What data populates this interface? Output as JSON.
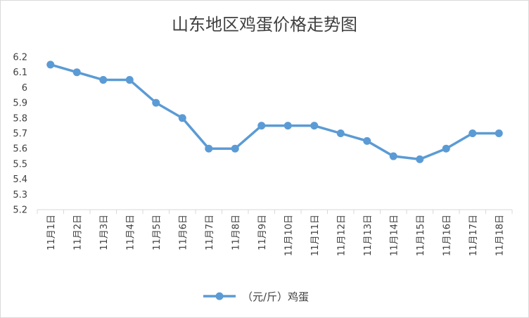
{
  "chart_data": {
    "type": "line",
    "title": "山东地区鸡蛋价格走势图",
    "xlabel": "",
    "ylabel": "",
    "categories": [
      "11月1日",
      "11月2日",
      "11月3日",
      "11月4日",
      "11月5日",
      "11月6日",
      "11月7日",
      "11月8日",
      "11月9日",
      "11月10日",
      "11月11日",
      "11月12日",
      "11月13日",
      "11月14日",
      "11月15日",
      "11月16日",
      "11月17日",
      "11月18日"
    ],
    "series": [
      {
        "name": "（元/斤）鸡蛋",
        "values": [
          6.15,
          6.1,
          6.05,
          6.05,
          5.9,
          5.8,
          5.6,
          5.6,
          5.75,
          5.75,
          5.75,
          5.7,
          5.65,
          5.55,
          5.53,
          5.6,
          5.7,
          5.7
        ]
      }
    ],
    "ylim": [
      5.2,
      6.2
    ],
    "yticks": [
      "5.2",
      "5.3",
      "5.4",
      "5.5",
      "5.6",
      "5.7",
      "5.8",
      "5.9",
      "6",
      "6.1",
      "6.2"
    ],
    "grid": false,
    "legend_position": "bottom",
    "series_color": "#5b9bd5",
    "axis_color": "#d9d9d9"
  }
}
